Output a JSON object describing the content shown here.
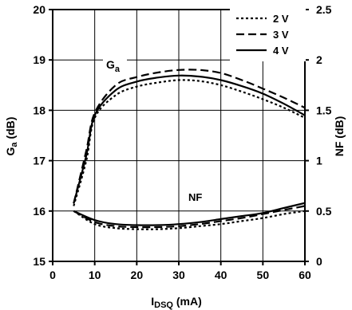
{
  "chart_data": {
    "type": "line",
    "x_axis": {
      "label_main": "I",
      "label_sub": "DSQ",
      "label_unit": " (mA)",
      "range": [
        0,
        60
      ],
      "ticks": [
        "0",
        "10",
        "20",
        "30",
        "40",
        "50",
        "60"
      ]
    },
    "y_left": {
      "label_main": "G",
      "label_sub": "a",
      "label_unit": " (dB)",
      "range": [
        15,
        20
      ],
      "ticks": [
        "15",
        "16",
        "17",
        "18",
        "19",
        "20"
      ]
    },
    "y_right": {
      "label": "NF (dB)",
      "range": [
        0,
        2.5
      ],
      "ticks": [
        "0",
        "0.5",
        "1",
        "1.5",
        "2",
        "2.5"
      ]
    },
    "grid": true,
    "legend_position": "top-right",
    "legend": [
      "2 V",
      "3 V",
      "4 V"
    ],
    "annotations": {
      "ga_main": "G",
      "ga_sub": "a",
      "nf": "NF"
    },
    "series": [
      {
        "name": "2 V",
        "axis": "left",
        "curve": "Ga",
        "style": "dotted",
        "x": [
          5,
          8,
          10,
          15,
          20,
          25,
          30,
          35,
          40,
          45,
          50,
          55,
          60
        ],
        "y": [
          16.1,
          17.0,
          17.85,
          18.3,
          18.47,
          18.55,
          18.6,
          18.58,
          18.5,
          18.37,
          18.22,
          18.05,
          17.85
        ]
      },
      {
        "name": "3 V",
        "axis": "left",
        "curve": "Ga",
        "style": "dashed",
        "x": [
          5,
          8,
          10,
          15,
          20,
          25,
          30,
          35,
          40,
          45,
          50,
          55,
          60
        ],
        "y": [
          16.15,
          17.2,
          17.95,
          18.5,
          18.66,
          18.75,
          18.8,
          18.8,
          18.74,
          18.6,
          18.43,
          18.25,
          18.05
        ]
      },
      {
        "name": "4 V",
        "axis": "left",
        "curve": "Ga",
        "style": "solid",
        "x": [
          5,
          8,
          10,
          15,
          20,
          25,
          30,
          35,
          40,
          45,
          50,
          55,
          60
        ],
        "y": [
          16.15,
          17.1,
          17.9,
          18.4,
          18.57,
          18.65,
          18.69,
          18.67,
          18.6,
          18.48,
          18.33,
          18.13,
          17.9
        ]
      },
      {
        "name": "2 V",
        "axis": "right",
        "curve": "NF",
        "style": "dotted",
        "x": [
          5,
          10,
          15,
          20,
          25,
          30,
          35,
          40,
          45,
          50,
          55,
          60
        ],
        "y": [
          0.5,
          0.37,
          0.33,
          0.32,
          0.32,
          0.33,
          0.35,
          0.37,
          0.4,
          0.43,
          0.47,
          0.5
        ]
      },
      {
        "name": "3 V",
        "axis": "right",
        "curve": "NF",
        "style": "dashed",
        "x": [
          5,
          10,
          15,
          20,
          25,
          30,
          35,
          40,
          45,
          50,
          55,
          60
        ],
        "y": [
          0.5,
          0.39,
          0.35,
          0.34,
          0.34,
          0.35,
          0.37,
          0.4,
          0.43,
          0.47,
          0.51,
          0.55
        ]
      },
      {
        "name": "4 V",
        "axis": "right",
        "curve": "NF",
        "style": "solid",
        "x": [
          5,
          10,
          15,
          20,
          25,
          30,
          35,
          40,
          45,
          50,
          55,
          60
        ],
        "y": [
          0.5,
          0.41,
          0.37,
          0.36,
          0.36,
          0.37,
          0.39,
          0.42,
          0.45,
          0.48,
          0.53,
          0.58
        ]
      }
    ]
  }
}
